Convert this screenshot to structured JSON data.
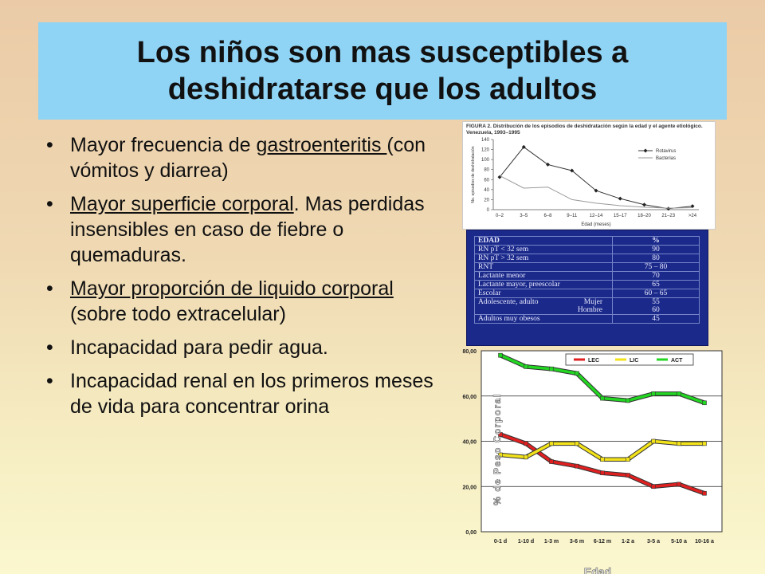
{
  "slide": {
    "title_line1": "Los niños son mas susceptibles a",
    "title_line2": "deshidratarse que los adultos",
    "bullets": [
      {
        "u": "",
        "pre": "Mayor frecuencia de ",
        "link": "gastroenteritis ",
        "post": "(con vómitos y diarrea)"
      },
      {
        "pre": "",
        "link": "Mayor superficie corporal",
        "post": ". Mas perdidas insensibles en caso de fiebre o quemaduras."
      },
      {
        "pre": "",
        "link": "Mayor proporción de liquido corporal ",
        "post": "(sobre todo extracelular)"
      },
      {
        "pre": "Incapacidad para pedir agua.",
        "link": "",
        "post": ""
      },
      {
        "pre": "Incapacidad renal en los primeros meses de vida para concentrar orina",
        "link": "",
        "post": ""
      }
    ]
  },
  "figure2": {
    "caption": "FIGURA 2. Distribución de los episodios de deshidratación según la edad y el agente etiológico. Venezuela, 1993–1995",
    "ylabel": "No. episodios de deshidratación",
    "xlabel": "Edad (meses)",
    "legend": [
      "Rotavirus",
      "Bacterias"
    ]
  },
  "table": {
    "header": [
      "EDAD",
      "%"
    ],
    "rows": [
      [
        "RN pT < 32 sem",
        "90"
      ],
      [
        "RN pT > 32 sem",
        "80"
      ],
      [
        "RNT",
        "75 – 80"
      ],
      [
        "Lactante menor",
        "70"
      ],
      [
        "Lactante mayor, preescolar",
        "65"
      ],
      [
        "Escolar",
        "60 – 65"
      ]
    ],
    "adolescent": {
      "label": "Adolescente, adulto",
      "mujer": "Mujer",
      "hombre": "Hombre",
      "mujer_val": "55",
      "hombre_val": "60"
    },
    "last_row": [
      "Adultos muy obesos",
      "45"
    ]
  },
  "chart_data": [
    {
      "type": "line",
      "title": "",
      "xlabel": "Edad (meses)",
      "ylabel": "No. episodios de deshidratación",
      "categories": [
        "0–2",
        "3–5",
        "6–8",
        "9–11",
        "12–14",
        "15–17",
        "18–20",
        "21–23",
        ">24"
      ],
      "ylim": [
        0,
        140
      ],
      "yticks": [
        0,
        20,
        40,
        60,
        80,
        100,
        120,
        140
      ],
      "series": [
        {
          "name": "Rotavirus",
          "values": [
            65,
            125,
            90,
            78,
            38,
            22,
            10,
            2,
            7
          ],
          "color": "#333333"
        },
        {
          "name": "Bacterias",
          "values": [
            68,
            43,
            45,
            20,
            13,
            8,
            5,
            3,
            4
          ],
          "color": "#999999"
        }
      ],
      "legend": "top-right",
      "grid": false
    },
    {
      "type": "line",
      "title": "",
      "xlabel": "Edad",
      "ylabel": "% de Peso Corporal",
      "categories": [
        "0-1 d",
        "1-10 d",
        "1-3 m",
        "3-6 m",
        "6-12 m",
        "1-2 a",
        "3-5 a",
        "5-10 a",
        "10-16 a"
      ],
      "ylim": [
        0,
        80
      ],
      "yticks": [
        "0,00",
        "20,00",
        "40,00",
        "60,00",
        "80,00"
      ],
      "series": [
        {
          "name": "LEC",
          "values": [
            43,
            39,
            31,
            29,
            26,
            25,
            20,
            21,
            17
          ],
          "color": "#e02020"
        },
        {
          "name": "LIC",
          "values": [
            34,
            33,
            39,
            39,
            32,
            32,
            40,
            39,
            39
          ],
          "color": "#f2e21a"
        },
        {
          "name": "ACT",
          "values": [
            78,
            73,
            72,
            70,
            59,
            58,
            61,
            61,
            57
          ],
          "color": "#22d622"
        }
      ],
      "legend": "top",
      "grid": true
    }
  ]
}
